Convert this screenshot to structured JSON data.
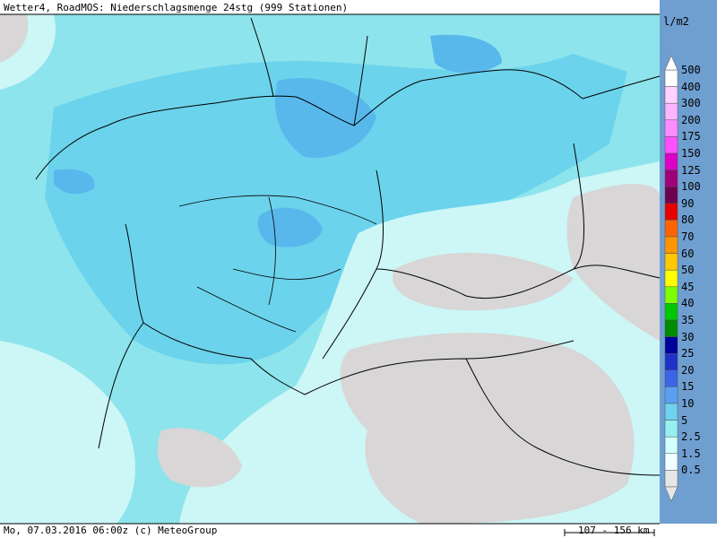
{
  "header": {
    "title": "Wetter4, RoadMOS: Niederschlagsmenge 24stg (999 Stationen)"
  },
  "footer": {
    "text": "Mo, 07.03.2016 06:00z (c) MeteoGroup",
    "scale": "107 - 156 km"
  },
  "legend": {
    "unit": "l/m2",
    "items": [
      {
        "label": "500",
        "color": "#ffffff"
      },
      {
        "label": "400",
        "color": "#ffd2ff"
      },
      {
        "label": "300",
        "color": "#ffb4ff"
      },
      {
        "label": "200",
        "color": "#ff8cff"
      },
      {
        "label": "175",
        "color": "#ff50ff"
      },
      {
        "label": "150",
        "color": "#dc00c8"
      },
      {
        "label": "125",
        "color": "#a00078"
      },
      {
        "label": "100",
        "color": "#6e0050"
      },
      {
        "label": "90",
        "color": "#e60000"
      },
      {
        "label": "80",
        "color": "#ff6400"
      },
      {
        "label": "70",
        "color": "#ff9600"
      },
      {
        "label": "60",
        "color": "#ffc800"
      },
      {
        "label": "50",
        "color": "#ffff00"
      },
      {
        "label": "45",
        "color": "#7dff00"
      },
      {
        "label": "40",
        "color": "#00c800"
      },
      {
        "label": "35",
        "color": "#008c00"
      },
      {
        "label": "30",
        "color": "#00009b"
      },
      {
        "label": "25",
        "color": "#1e32c8"
      },
      {
        "label": "20",
        "color": "#3c64e6"
      },
      {
        "label": "15",
        "color": "#5aa0f0"
      },
      {
        "label": "10",
        "color": "#6ed2f0"
      },
      {
        "label": "5",
        "color": "#96f0f0"
      },
      {
        "label": "2.5",
        "color": "#d2ffff"
      },
      {
        "label": "1.5",
        "color": "#f0ffff"
      },
      {
        "label": "0.5",
        "color": "#e6e6e6"
      }
    ]
  }
}
